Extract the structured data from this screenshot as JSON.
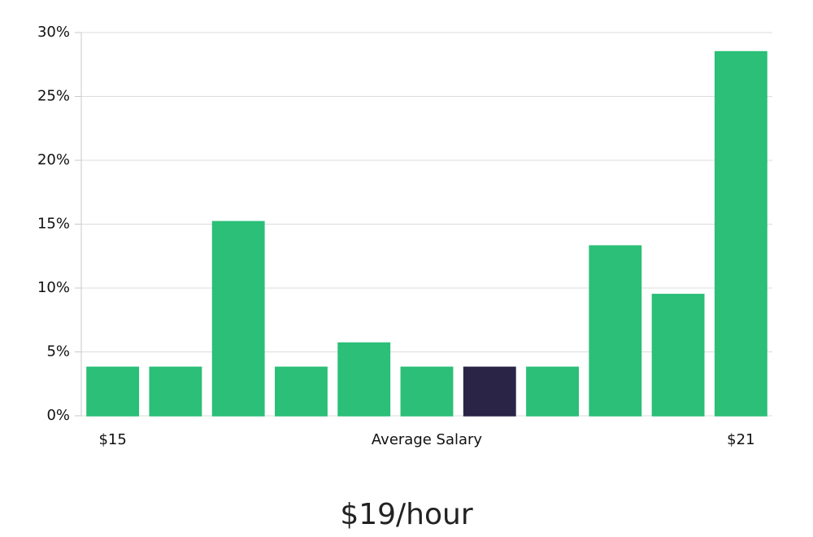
{
  "chart_data": {
    "type": "bar",
    "categories": [
      "$15",
      null,
      null,
      null,
      null,
      "Average Salary",
      null,
      null,
      null,
      null,
      "$21"
    ],
    "values": [
      3.8,
      3.8,
      15.2,
      3.8,
      5.7,
      3.8,
      3.8,
      3.8,
      13.3,
      9.5,
      28.5
    ],
    "colors": [
      "#2bbf77",
      "#2bbf77",
      "#2bbf77",
      "#2bbf77",
      "#2bbf77",
      "#2bbf77",
      "#2a2547",
      "#2bbf77",
      "#2bbf77",
      "#2bbf77",
      "#2bbf77"
    ],
    "ylim": [
      0,
      30
    ],
    "yticks": [
      {
        "value": 0,
        "label": "0%"
      },
      {
        "value": 5,
        "label": "5%"
      },
      {
        "value": 10,
        "label": "10%"
      },
      {
        "value": 15,
        "label": "15%"
      },
      {
        "value": 20,
        "label": "20%"
      },
      {
        "value": 25,
        "label": "25%"
      },
      {
        "value": 30,
        "label": "30%"
      }
    ],
    "grid": true,
    "annotation": "$19/hour"
  }
}
